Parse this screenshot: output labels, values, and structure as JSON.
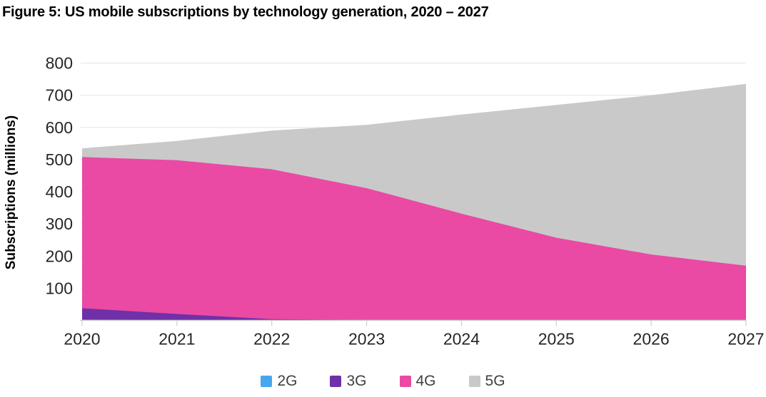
{
  "chart_data": {
    "type": "area",
    "stacked": true,
    "title": "Figure 5: US mobile subscriptions by technology generation, 2020 – 2027",
    "xlabel": "",
    "ylabel": "Subscriptions (millions)",
    "ylim": [
      0,
      800
    ],
    "grid": true,
    "legend_position": "bottom",
    "x": [
      2020,
      2021,
      2022,
      2023,
      2024,
      2025,
      2026,
      2027
    ],
    "y_ticks": [
      800,
      700,
      600,
      500,
      400,
      300,
      200,
      100
    ],
    "series": [
      {
        "name": "2G",
        "color": "#47A7ED",
        "values": [
          2,
          1,
          0,
          0,
          0,
          0,
          0,
          0
        ]
      },
      {
        "name": "3G",
        "color": "#6F30A8",
        "values": [
          36,
          19,
          4,
          1,
          0,
          0,
          0,
          0
        ]
      },
      {
        "name": "4G",
        "color": "#EA4AA3",
        "values": [
          470,
          478,
          466,
          410,
          332,
          257,
          205,
          170
        ]
      },
      {
        "name": "5G",
        "color": "#C9C9C9",
        "values": [
          27,
          60,
          120,
          197,
          308,
          413,
          495,
          565
        ]
      }
    ],
    "totals": [
      535,
      558,
      590,
      608,
      640,
      670,
      700,
      735
    ]
  },
  "colors": {
    "gridline": "#E9E9E9",
    "axis": "#CFCFCF",
    "tick_text": "#262626",
    "legend_text": "#404040",
    "title_text": "#000000"
  }
}
